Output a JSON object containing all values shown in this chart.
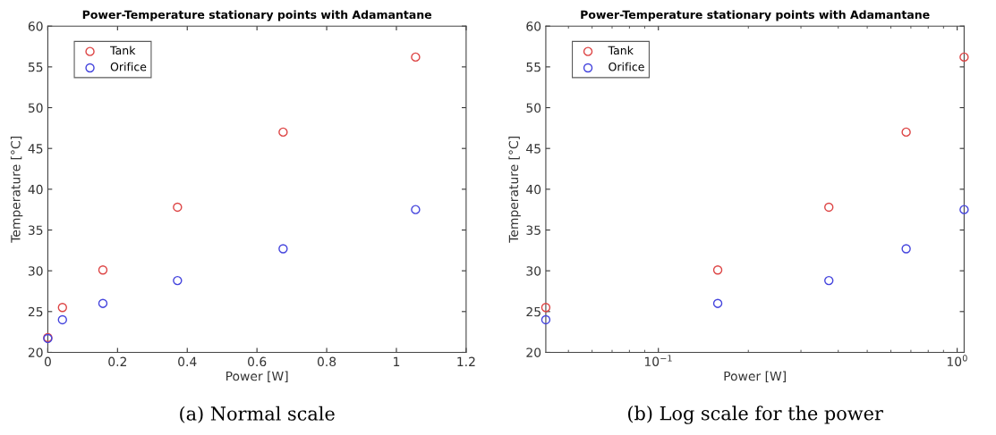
{
  "chart_data": [
    {
      "type": "scatter",
      "title": "Power-Temperature stationary points with Adamantane",
      "xlabel": "Power [W]",
      "ylabel": "Temperature [°C]",
      "marker": "circle",
      "legend": "top left",
      "grid": false,
      "x": [
        0,
        0.042,
        0.158,
        0.372,
        0.675,
        1.055
      ],
      "xlim": [
        0,
        1.2
      ],
      "xticks": [
        0,
        0.2,
        0.4,
        0.6,
        0.8,
        1,
        1.2
      ],
      "ylim": [
        20,
        60
      ],
      "yticks": [
        20,
        25,
        30,
        35,
        40,
        45,
        50,
        55,
        60
      ],
      "series": [
        {
          "name": "Tank",
          "color": "#dd4444",
          "values": [
            21.8,
            25.5,
            30.1,
            37.8,
            47.0,
            56.2
          ]
        },
        {
          "name": "Orifice",
          "color": "#4444dd",
          "values": [
            21.7,
            24.0,
            26.0,
            28.8,
            32.7,
            37.5
          ]
        }
      ],
      "annotations": [
        "(a) Normal scale"
      ]
    },
    {
      "type": "scatter",
      "title": "Power-Temperature stationary points with Adamantane",
      "xlabel": "Power [W]",
      "ylabel": "Temperature [°C]",
      "marker": "circle",
      "legend": "top left",
      "grid": false,
      "log": "x",
      "x": [
        0.042,
        0.158,
        0.372,
        0.675,
        1.055
      ],
      "xlim": [
        0.042,
        1.055
      ],
      "xticks": [
        {
          "value": 0.1,
          "label": "10$^{−1}$"
        },
        {
          "value": 1,
          "label": "10$^{0}$"
        }
      ],
      "ylim": [
        20,
        60
      ],
      "yticks": [
        20,
        25,
        30,
        35,
        40,
        45,
        50,
        55,
        60
      ],
      "series": [
        {
          "name": "Tank",
          "color": "#dd4444",
          "values": [
            25.5,
            30.1,
            37.8,
            47.0,
            56.2
          ]
        },
        {
          "name": "Orifice",
          "color": "#4444dd",
          "values": [
            24.0,
            26.0,
            28.8,
            32.7,
            37.5
          ]
        }
      ],
      "annotations": [
        "(b) Log scale for the power"
      ]
    }
  ]
}
